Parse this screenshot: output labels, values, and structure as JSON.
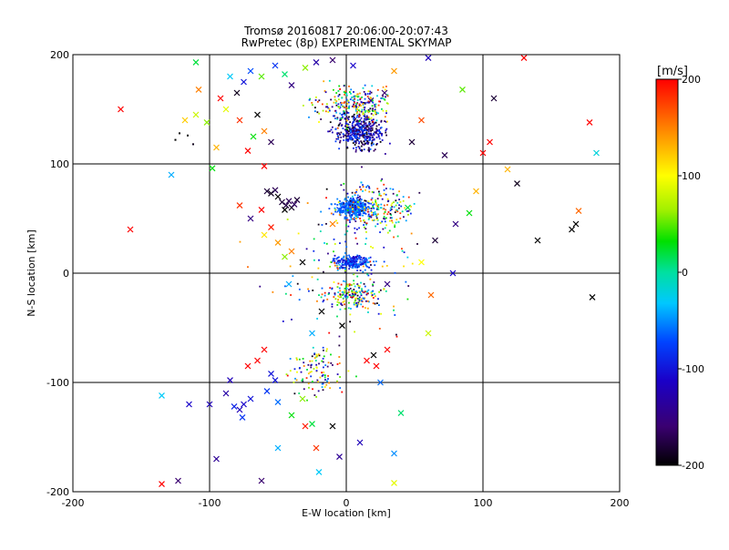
{
  "chart_data": {
    "type": "scatter",
    "title": "Tromsø 20160817 20:06:00-20:07:43",
    "subtitle": "RwPretec (8p) EXPERIMENTAL SKYMAP",
    "xlabel": "E-W location [km]",
    "ylabel": "N-S location [km]",
    "xlim": [
      -200,
      200
    ],
    "ylim": [
      -200,
      200
    ],
    "xticks": [
      "-200",
      "-100",
      "0",
      "100",
      "200"
    ],
    "yticks": [
      "-200",
      "-100",
      "0",
      "100",
      "200"
    ],
    "grid": true,
    "colorbar": {
      "label": "[m/s]",
      "range": [
        -200,
        200
      ],
      "ticks": [
        "200",
        "100",
        "0",
        "-100",
        "-200"
      ]
    },
    "marker_types": [
      "cross",
      "dot"
    ],
    "series": [
      {
        "x": -165,
        "y": 150,
        "v": 200,
        "m": "cross"
      },
      {
        "x": -158,
        "y": 40,
        "v": 200,
        "m": "cross"
      },
      {
        "x": -135,
        "y": -112,
        "v": -30,
        "m": "cross"
      },
      {
        "x": -135,
        "y": -193,
        "v": 200,
        "m": "cross"
      },
      {
        "x": -123,
        "y": -190,
        "v": -160,
        "m": "cross"
      },
      {
        "x": -128,
        "y": 90,
        "v": -40,
        "m": "cross"
      },
      {
        "x": -110,
        "y": 193,
        "v": 20,
        "m": "cross"
      },
      {
        "x": -108,
        "y": 168,
        "v": 150,
        "m": "cross"
      },
      {
        "x": -110,
        "y": 145,
        "v": 80,
        "m": "cross"
      },
      {
        "x": -118,
        "y": 140,
        "v": 120,
        "m": "cross"
      },
      {
        "x": -122,
        "y": 128,
        "v": -200,
        "m": "dot"
      },
      {
        "x": -125,
        "y": 122,
        "v": -200,
        "m": "dot"
      },
      {
        "x": -116,
        "y": 126,
        "v": -200,
        "m": "dot"
      },
      {
        "x": -112,
        "y": 118,
        "v": -190,
        "m": "dot"
      },
      {
        "x": -102,
        "y": 138,
        "v": 60,
        "m": "cross"
      },
      {
        "x": -98,
        "y": 96,
        "v": 30,
        "m": "cross"
      },
      {
        "x": -92,
        "y": 160,
        "v": 200,
        "m": "cross"
      },
      {
        "x": -88,
        "y": 150,
        "v": 90,
        "m": "cross"
      },
      {
        "x": -78,
        "y": 140,
        "v": 180,
        "m": "cross"
      },
      {
        "x": -72,
        "y": 112,
        "v": 200,
        "m": "cross"
      },
      {
        "x": -68,
        "y": 125,
        "v": 30,
        "m": "cross"
      },
      {
        "x": -65,
        "y": 145,
        "v": -200,
        "m": "cross"
      },
      {
        "x": -70,
        "y": 185,
        "v": -70,
        "m": "cross"
      },
      {
        "x": -60,
        "y": 130,
        "v": 150,
        "m": "cross"
      },
      {
        "x": -55,
        "y": 120,
        "v": -170,
        "m": "cross"
      },
      {
        "x": -62,
        "y": 180,
        "v": 50,
        "m": "cross"
      },
      {
        "x": -52,
        "y": 190,
        "v": -80,
        "m": "cross"
      },
      {
        "x": -45,
        "y": 182,
        "v": 10,
        "m": "cross"
      },
      {
        "x": -40,
        "y": 172,
        "v": -150,
        "m": "cross"
      },
      {
        "x": -60,
        "y": 98,
        "v": 200,
        "m": "cross"
      },
      {
        "x": -58,
        "y": 75,
        "v": -180,
        "m": "cross"
      },
      {
        "x": -55,
        "y": 73,
        "v": -190,
        "m": "cross"
      },
      {
        "x": -52,
        "y": 76,
        "v": -170,
        "m": "cross"
      },
      {
        "x": -50,
        "y": 70,
        "v": -200,
        "m": "cross"
      },
      {
        "x": -47,
        "y": 65,
        "v": -180,
        "m": "cross"
      },
      {
        "x": -44,
        "y": 62,
        "v": -175,
        "m": "cross"
      },
      {
        "x": -42,
        "y": 66,
        "v": -170,
        "m": "cross"
      },
      {
        "x": -40,
        "y": 60,
        "v": -190,
        "m": "cross"
      },
      {
        "x": -38,
        "y": 63,
        "v": -165,
        "m": "cross"
      },
      {
        "x": -45,
        "y": 58,
        "v": -200,
        "m": "cross"
      },
      {
        "x": -36,
        "y": 67,
        "v": -180,
        "m": "cross"
      },
      {
        "x": -62,
        "y": 58,
        "v": 200,
        "m": "cross"
      },
      {
        "x": -70,
        "y": 50,
        "v": -150,
        "m": "cross"
      },
      {
        "x": -78,
        "y": 62,
        "v": 180,
        "m": "cross"
      },
      {
        "x": -55,
        "y": 42,
        "v": 190,
        "m": "cross"
      },
      {
        "x": -50,
        "y": 28,
        "v": 140,
        "m": "cross"
      },
      {
        "x": -40,
        "y": 20,
        "v": 150,
        "m": "cross"
      },
      {
        "x": -32,
        "y": 10,
        "v": -200,
        "m": "cross"
      },
      {
        "x": -45,
        "y": 15,
        "v": 60,
        "m": "cross"
      },
      {
        "x": -60,
        "y": 35,
        "v": 110,
        "m": "cross"
      },
      {
        "x": -42,
        "y": -10,
        "v": -40,
        "m": "cross"
      },
      {
        "x": -18,
        "y": -35,
        "v": -200,
        "m": "cross"
      },
      {
        "x": -25,
        "y": -55,
        "v": -40,
        "m": "cross"
      },
      {
        "x": -65,
        "y": -80,
        "v": 200,
        "m": "cross"
      },
      {
        "x": -72,
        "y": -85,
        "v": 200,
        "m": "cross"
      },
      {
        "x": -60,
        "y": -70,
        "v": 200,
        "m": "cross"
      },
      {
        "x": -55,
        "y": -92,
        "v": -100,
        "m": "cross"
      },
      {
        "x": -52,
        "y": -98,
        "v": -100,
        "m": "cross"
      },
      {
        "x": -58,
        "y": -108,
        "v": -80,
        "m": "cross"
      },
      {
        "x": -75,
        "y": -120,
        "v": -110,
        "m": "cross"
      },
      {
        "x": -78,
        "y": -125,
        "v": -120,
        "m": "cross"
      },
      {
        "x": -82,
        "y": -122,
        "v": -90,
        "m": "cross"
      },
      {
        "x": -76,
        "y": -132,
        "v": -80,
        "m": "cross"
      },
      {
        "x": -70,
        "y": -115,
        "v": -100,
        "m": "cross"
      },
      {
        "x": -50,
        "y": -118,
        "v": -60,
        "m": "cross"
      },
      {
        "x": -100,
        "y": -120,
        "v": -120,
        "m": "cross"
      },
      {
        "x": -95,
        "y": -170,
        "v": -140,
        "m": "cross"
      },
      {
        "x": -62,
        "y": -190,
        "v": -160,
        "m": "cross"
      },
      {
        "x": -50,
        "y": -160,
        "v": -40,
        "m": "cross"
      },
      {
        "x": -40,
        "y": -130,
        "v": 30,
        "m": "cross"
      },
      {
        "x": -32,
        "y": -115,
        "v": 60,
        "m": "cross"
      },
      {
        "x": -30,
        "y": -140,
        "v": 190,
        "m": "cross"
      },
      {
        "x": -25,
        "y": -138,
        "v": 20,
        "m": "cross"
      },
      {
        "x": -22,
        "y": -160,
        "v": 180,
        "m": "cross"
      },
      {
        "x": -20,
        "y": -182,
        "v": -30,
        "m": "cross"
      },
      {
        "x": -10,
        "y": -140,
        "v": -200,
        "m": "cross"
      },
      {
        "x": -5,
        "y": -168,
        "v": -140,
        "m": "cross"
      },
      {
        "x": 10,
        "y": -155,
        "v": -120,
        "m": "cross"
      },
      {
        "x": 20,
        "y": -75,
        "v": -200,
        "m": "cross"
      },
      {
        "x": 22,
        "y": -85,
        "v": 200,
        "m": "cross"
      },
      {
        "x": 30,
        "y": -70,
        "v": 200,
        "m": "cross"
      },
      {
        "x": 25,
        "y": -100,
        "v": -60,
        "m": "cross"
      },
      {
        "x": 35,
        "y": -165,
        "v": -50,
        "m": "cross"
      },
      {
        "x": 40,
        "y": -128,
        "v": 10,
        "m": "cross"
      },
      {
        "x": 35,
        "y": -192,
        "v": 90,
        "m": "cross"
      },
      {
        "x": 60,
        "y": -55,
        "v": 80,
        "m": "cross"
      },
      {
        "x": 62,
        "y": -20,
        "v": 160,
        "m": "cross"
      },
      {
        "x": 65,
        "y": 30,
        "v": -180,
        "m": "cross"
      },
      {
        "x": 78,
        "y": 0,
        "v": -110,
        "m": "cross"
      },
      {
        "x": 80,
        "y": 45,
        "v": -150,
        "m": "cross"
      },
      {
        "x": 90,
        "y": 55,
        "v": 30,
        "m": "cross"
      },
      {
        "x": 95,
        "y": 75,
        "v": 130,
        "m": "cross"
      },
      {
        "x": 100,
        "y": 110,
        "v": 200,
        "m": "cross"
      },
      {
        "x": 105,
        "y": 120,
        "v": 200,
        "m": "cross"
      },
      {
        "x": 108,
        "y": 160,
        "v": -180,
        "m": "cross"
      },
      {
        "x": 85,
        "y": 168,
        "v": 50,
        "m": "cross"
      },
      {
        "x": 130,
        "y": 197,
        "v": 200,
        "m": "cross"
      },
      {
        "x": 140,
        "y": 30,
        "v": -200,
        "m": "cross"
      },
      {
        "x": 165,
        "y": 40,
        "v": -200,
        "m": "cross"
      },
      {
        "x": 168,
        "y": 45,
        "v": -200,
        "m": "cross"
      },
      {
        "x": 170,
        "y": 57,
        "v": 160,
        "m": "cross"
      },
      {
        "x": 180,
        "y": -22,
        "v": -200,
        "m": "cross"
      },
      {
        "x": 183,
        "y": 110,
        "v": -20,
        "m": "cross"
      },
      {
        "x": 178,
        "y": 138,
        "v": 200,
        "m": "cross"
      },
      {
        "x": 125,
        "y": 82,
        "v": -190,
        "m": "cross"
      },
      {
        "x": 118,
        "y": 95,
        "v": 130,
        "m": "cross"
      },
      {
        "x": 55,
        "y": 140,
        "v": 170,
        "m": "cross"
      },
      {
        "x": 48,
        "y": 120,
        "v": -180,
        "m": "cross"
      },
      {
        "x": 72,
        "y": 108,
        "v": -170,
        "m": "cross"
      },
      {
        "x": 28,
        "y": 165,
        "v": -160,
        "m": "cross"
      },
      {
        "x": 18,
        "y": 158,
        "v": -150,
        "m": "cross"
      },
      {
        "x": 35,
        "y": 185,
        "v": 140,
        "m": "cross"
      },
      {
        "x": 60,
        "y": 197,
        "v": -120,
        "m": "cross"
      },
      {
        "x": 5,
        "y": 190,
        "v": -110,
        "m": "cross"
      },
      {
        "x": -10,
        "y": 195,
        "v": -160,
        "m": "cross"
      },
      {
        "x": -22,
        "y": 193,
        "v": -130,
        "m": "cross"
      },
      {
        "x": -30,
        "y": 188,
        "v": 60,
        "m": "cross"
      },
      {
        "x": -95,
        "y": 115,
        "v": 130,
        "m": "cross"
      },
      {
        "x": -85,
        "y": 180,
        "v": -30,
        "m": "cross"
      },
      {
        "x": -80,
        "y": 165,
        "v": -190,
        "m": "cross"
      },
      {
        "x": -75,
        "y": 175,
        "v": -100,
        "m": "cross"
      },
      {
        "x": 5,
        "y": 128,
        "v": -110,
        "m": "cross"
      },
      {
        "x": 8,
        "y": 122,
        "v": -90,
        "m": "cross"
      },
      {
        "x": 12,
        "y": 135,
        "v": -150,
        "m": "cross"
      },
      {
        "x": 2,
        "y": 65,
        "v": -60,
        "m": "cross"
      },
      {
        "x": -5,
        "y": 58,
        "v": -80,
        "m": "cross"
      },
      {
        "x": 8,
        "y": 60,
        "v": -70,
        "m": "cross"
      },
      {
        "x": 3,
        "y": 10,
        "v": -70,
        "m": "cross"
      },
      {
        "x": -3,
        "y": -48,
        "v": -200,
        "m": "cross"
      },
      {
        "x": -115,
        "y": -120,
        "v": -110,
        "m": "cross"
      },
      {
        "x": -85,
        "y": -98,
        "v": -120,
        "m": "cross"
      },
      {
        "x": -88,
        "y": -110,
        "v": -130,
        "m": "cross"
      },
      {
        "x": 15,
        "y": -80,
        "v": 200,
        "m": "cross"
      },
      {
        "x": 45,
        "y": 60,
        "v": 20,
        "m": "cross"
      },
      {
        "x": 55,
        "y": 10,
        "v": 100,
        "m": "cross"
      },
      {
        "x": 30,
        "y": -10,
        "v": -150,
        "m": "cross"
      },
      {
        "x": -10,
        "y": 45,
        "v": 150,
        "m": "cross"
      }
    ]
  }
}
